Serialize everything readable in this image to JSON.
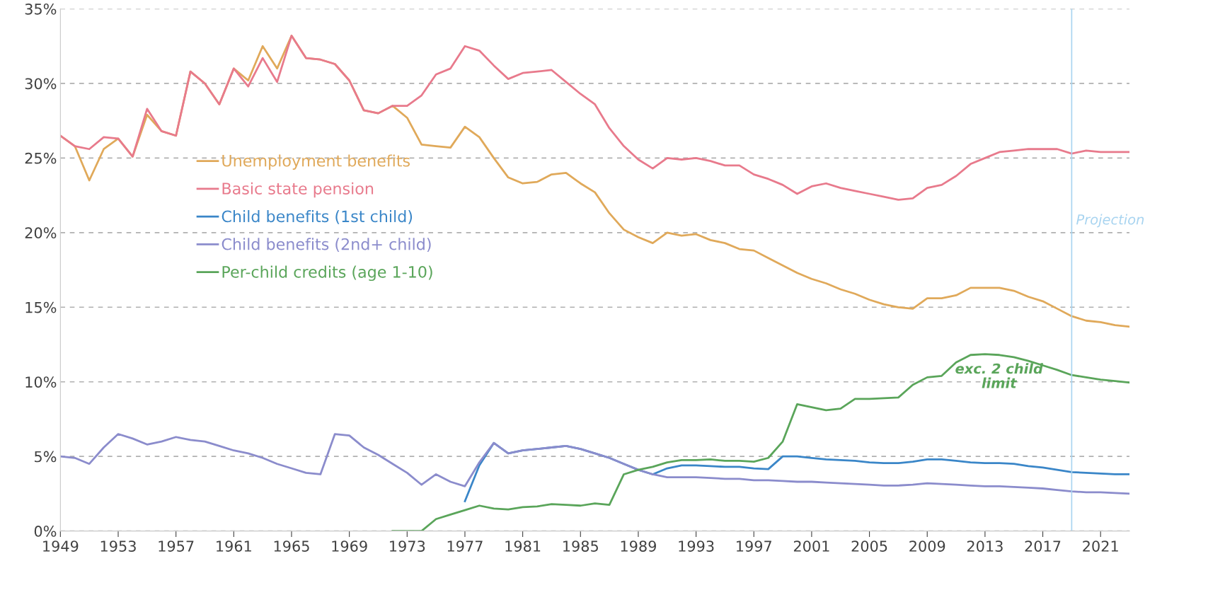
{
  "chart_data": {
    "type": "line",
    "x": [
      1949,
      1950,
      1951,
      1952,
      1953,
      1954,
      1955,
      1956,
      1957,
      1958,
      1959,
      1960,
      1961,
      1962,
      1963,
      1964,
      1965,
      1966,
      1967,
      1968,
      1969,
      1970,
      1971,
      1972,
      1973,
      1974,
      1975,
      1976,
      1977,
      1978,
      1979,
      1980,
      1981,
      1982,
      1983,
      1984,
      1985,
      1986,
      1987,
      1988,
      1989,
      1990,
      1991,
      1992,
      1993,
      1994,
      1995,
      1996,
      1997,
      1998,
      1999,
      2000,
      2001,
      2002,
      2003,
      2004,
      2005,
      2006,
      2007,
      2008,
      2009,
      2010,
      2011,
      2012,
      2013,
      2014,
      2015,
      2016,
      2017,
      2018,
      2019,
      2020,
      2021,
      2022,
      2023
    ],
    "series": [
      {
        "name": "Unemployment benefits",
        "color": "#e0a95a",
        "values": [
          26.5,
          25.8,
          23.5,
          25.6,
          26.3,
          25.1,
          27.9,
          26.8,
          26.5,
          30.8,
          30.0,
          28.6,
          31.0,
          30.2,
          32.5,
          31.0,
          33.2,
          31.7,
          31.6,
          31.3,
          30.2,
          28.2,
          28.0,
          28.5,
          27.7,
          25.9,
          25.8,
          25.7,
          27.1,
          26.4,
          25.0,
          23.7,
          23.3,
          23.4,
          23.9,
          24.0,
          23.3,
          22.7,
          21.3,
          20.2,
          19.7,
          19.3,
          20.0,
          19.8,
          19.9,
          19.5,
          19.3,
          18.9,
          18.8,
          18.3,
          17.8,
          17.3,
          16.9,
          16.6,
          16.2,
          15.9,
          15.5,
          15.2,
          15.0,
          14.9,
          15.6,
          15.6,
          15.8,
          16.3,
          16.3,
          16.3,
          16.1,
          15.7,
          15.4,
          14.9,
          14.4,
          14.1,
          14.0,
          13.8,
          13.7
        ]
      },
      {
        "name": "Basic state pension",
        "color": "#e87a8c",
        "values": [
          26.5,
          25.8,
          25.6,
          26.4,
          26.3,
          25.1,
          28.3,
          26.8,
          26.5,
          30.8,
          30.0,
          28.6,
          31.0,
          29.8,
          31.7,
          30.1,
          33.2,
          31.7,
          31.6,
          31.3,
          30.2,
          28.2,
          28.0,
          28.5,
          28.5,
          29.2,
          30.6,
          31.0,
          32.5,
          32.2,
          31.2,
          30.3,
          30.7,
          30.8,
          30.9,
          30.1,
          29.3,
          28.6,
          27.0,
          25.8,
          24.9,
          24.3,
          25.0,
          24.9,
          25.0,
          24.8,
          24.5,
          24.5,
          23.9,
          23.6,
          23.2,
          22.6,
          23.1,
          23.3,
          23.0,
          22.8,
          22.6,
          22.4,
          22.2,
          22.3,
          23.0,
          23.2,
          23.8,
          24.6,
          25.0,
          25.4,
          25.5,
          25.6,
          25.6,
          25.6,
          25.3,
          25.5,
          25.4,
          25.4,
          25.4
        ]
      },
      {
        "name": "Child benefits (1st child)",
        "color": "#3a86c8",
        "x": [
          1977,
          1978,
          1979,
          1980,
          1981,
          1982,
          1983,
          1984,
          1985,
          1986,
          1987,
          1988,
          1989,
          1990,
          1991,
          1992,
          1993,
          1994,
          1995,
          1996,
          1997,
          1998,
          1999,
          2000,
          2001,
          2002,
          2003,
          2004,
          2005,
          2006,
          2007,
          2008,
          2009,
          2010,
          2011,
          2012,
          2013,
          2014,
          2015,
          2016,
          2017,
          2018,
          2019,
          2020,
          2021,
          2022,
          2023
        ],
        "values": [
          2.0,
          4.4,
          5.9,
          5.2,
          5.4,
          5.5,
          5.6,
          5.7,
          5.5,
          5.2,
          4.9,
          4.5,
          4.1,
          3.8,
          4.2,
          4.4,
          4.4,
          4.35,
          4.3,
          4.3,
          4.2,
          4.15,
          5.0,
          5.0,
          4.9,
          4.8,
          4.75,
          4.7,
          4.6,
          4.55,
          4.55,
          4.65,
          4.8,
          4.8,
          4.7,
          4.6,
          4.55,
          4.55,
          4.5,
          4.35,
          4.25,
          4.1,
          3.95,
          3.9,
          3.85,
          3.8,
          3.8
        ]
      },
      {
        "name": "Child benefits (2nd+ child)",
        "color": "#8b8ccc",
        "values": [
          5.0,
          4.9,
          4.5,
          5.6,
          6.5,
          6.2,
          5.8,
          6.0,
          6.3,
          6.1,
          6.0,
          5.7,
          5.4,
          5.2,
          4.9,
          4.5,
          4.2,
          3.9,
          3.8,
          6.5,
          6.4,
          5.6,
          5.1,
          4.5,
          3.9,
          3.1,
          3.8,
          3.3,
          3.0,
          4.6,
          5.9,
          5.2,
          5.4,
          5.5,
          5.6,
          5.7,
          5.5,
          5.2,
          4.9,
          4.5,
          4.1,
          3.8,
          3.6,
          3.6,
          3.6,
          3.55,
          3.5,
          3.5,
          3.4,
          3.4,
          3.35,
          3.3,
          3.3,
          3.25,
          3.2,
          3.15,
          3.1,
          3.05,
          3.05,
          3.1,
          3.2,
          3.15,
          3.1,
          3.05,
          3.0,
          3.0,
          2.95,
          2.9,
          2.85,
          2.75,
          2.65,
          2.6,
          2.6,
          2.55,
          2.5
        ]
      },
      {
        "name": "Per-child credits (age 1-10)",
        "color": "#5aa55a",
        "x": [
          1972,
          1973,
          1974,
          1975,
          1976,
          1977,
          1978,
          1979,
          1980,
          1981,
          1982,
          1983,
          1984,
          1985,
          1986,
          1987,
          1988,
          1989,
          1990,
          1991,
          1992,
          1993,
          1994,
          1995,
          1996,
          1997,
          1998,
          1999,
          2000,
          2001,
          2002,
          2003,
          2004,
          2005,
          2006,
          2007,
          2008,
          2009,
          2010,
          2011,
          2012,
          2013,
          2014,
          2015,
          2016,
          2017,
          2018,
          2019,
          2020,
          2021,
          2022,
          2023
        ],
        "values": [
          0,
          0,
          0,
          0.8,
          1.1,
          1.4,
          1.7,
          1.5,
          1.45,
          1.6,
          1.65,
          1.8,
          1.75,
          1.7,
          1.85,
          1.75,
          3.8,
          4.1,
          4.3,
          4.6,
          4.75,
          4.75,
          4.8,
          4.7,
          4.7,
          4.65,
          4.9,
          6.0,
          8.5,
          8.3,
          8.1,
          8.2,
          8.85,
          8.85,
          8.9,
          8.95,
          9.8,
          10.3,
          10.4,
          11.3,
          11.8,
          11.85,
          11.8,
          11.65,
          11.4,
          11.1,
          10.8,
          10.45,
          10.3,
          10.15,
          10.05,
          9.95
        ]
      }
    ],
    "xlim": [
      1949,
      2023
    ],
    "xticks": [
      1949,
      1953,
      1957,
      1961,
      1965,
      1969,
      1973,
      1977,
      1981,
      1985,
      1989,
      1993,
      1997,
      2001,
      2005,
      2009,
      2013,
      2017,
      2021
    ],
    "ylim": [
      0,
      35
    ],
    "yticks": [
      {
        "value": 0,
        "label": "0%"
      },
      {
        "value": 5,
        "label": "5%"
      },
      {
        "value": 10,
        "label": "10%"
      },
      {
        "value": 15,
        "label": "15%"
      },
      {
        "value": 20,
        "label": "20%"
      },
      {
        "value": 25,
        "label": "25%"
      },
      {
        "value": 30,
        "label": "30%"
      },
      {
        "value": 35,
        "label": "35%"
      }
    ],
    "ref_lines": [
      {
        "axis": "x",
        "value": 2019,
        "label": "Projection",
        "color": "#a8d4f0"
      }
    ],
    "annotations": [
      "exc. 2 child\nlimit"
    ],
    "grid": "y",
    "legend": "left",
    "line_style": "solid",
    "marker": "none"
  }
}
